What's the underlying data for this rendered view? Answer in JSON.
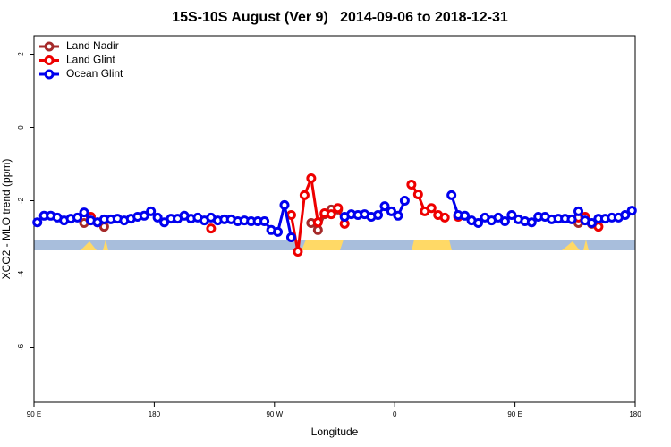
{
  "chart_data": {
    "type": "line",
    "title": "15S-10S August (Ver 9)   2014-09-06 to 2018-12-31",
    "xlabel": "Longitude",
    "ylabel": "XCO2 - MLO trend (ppm)",
    "xlim": [
      90,
      540
    ],
    "xticks": [
      {
        "value": 90,
        "label": "90 E"
      },
      180,
      {
        "value": 270,
        "label": "90 W"
      },
      {
        "value": 360,
        "label": "0"
      },
      {
        "value": 450,
        "label": "90 E"
      },
      {
        "value": 540,
        "label": "180"
      }
    ],
    "ylim": [
      -7.5,
      2.5
    ],
    "yticks": [
      -6,
      -4,
      -2,
      0,
      2
    ],
    "legend": "top-left",
    "series": [
      {
        "name": "Land Nadir",
        "color": "#a52a2a",
        "x": [
          127.5,
          132.5,
          142.5,
          147.5,
          297.5,
          302.5,
          307.5,
          312.5,
          317.5,
          322.5,
          497.5,
          502.5,
          507.5
        ],
        "values": [
          -2.61,
          null,
          -2.71,
          null,
          -2.61,
          -2.8,
          -2.37,
          -2.24,
          -2.24,
          null,
          -2.61,
          null,
          -2.63
        ]
      },
      {
        "name": "Land Glint",
        "color": "#ee0000",
        "x": [
          132.5,
          137.5,
          142.5,
          222.5,
          227.5,
          282.5,
          287.5,
          292.5,
          297.5,
          302.5,
          307.5,
          312.5,
          317.5,
          322.5,
          327.5,
          372.5,
          377.5,
          382.5,
          387.5,
          392.5,
          397.5,
          402.5,
          407.5,
          412.5,
          497.5,
          502.5,
          507.5,
          512.5
        ],
        "values": [
          -2.44,
          -2.59,
          null,
          -2.76,
          null,
          -2.39,
          -3.39,
          -1.85,
          -1.39,
          -2.59,
          -2.34,
          -2.37,
          -2.2,
          -2.63,
          null,
          -1.56,
          -1.83,
          -2.29,
          -2.2,
          -2.39,
          -2.46,
          null,
          -2.44,
          null,
          -2.46,
          -2.44,
          null,
          -2.71
        ]
      },
      {
        "name": "Ocean Glint",
        "color": "#0000ee",
        "x": [
          92.5,
          97.5,
          102.5,
          107.5,
          112.5,
          117.5,
          122.5,
          127.5,
          132.5,
          137.5,
          142.5,
          147.5,
          152.5,
          157.5,
          162.5,
          167.5,
          172.5,
          177.5,
          182.5,
          187.5,
          192.5,
          197.5,
          202.5,
          207.5,
          212.5,
          217.5,
          222.5,
          227.5,
          232.5,
          237.5,
          242.5,
          247.5,
          252.5,
          257.5,
          262.5,
          267.5,
          272.5,
          277.5,
          282.5,
          287.5,
          322.5,
          327.5,
          332.5,
          337.5,
          342.5,
          347.5,
          352.5,
          357.5,
          362.5,
          367.5,
          372.5,
          402.5,
          407.5,
          412.5,
          417.5,
          422.5,
          427.5,
          432.5,
          437.5,
          442.5,
          447.5,
          452.5,
          457.5,
          462.5,
          467.5,
          472.5,
          477.5,
          482.5,
          487.5,
          492.5,
          497.5,
          502.5,
          507.5,
          512.5,
          517.5,
          522.5,
          527.5,
          532.5,
          537.5
        ],
        "values": [
          -2.59,
          -2.41,
          -2.41,
          -2.46,
          -2.54,
          -2.49,
          -2.46,
          -2.32,
          -2.54,
          -2.59,
          -2.51,
          -2.51,
          -2.49,
          -2.54,
          -2.49,
          -2.44,
          -2.41,
          -2.29,
          -2.46,
          -2.59,
          -2.49,
          -2.49,
          -2.41,
          -2.49,
          -2.46,
          -2.54,
          -2.46,
          -2.54,
          -2.51,
          -2.51,
          -2.56,
          -2.54,
          -2.56,
          -2.56,
          -2.56,
          -2.8,
          -2.85,
          -2.12,
          -3.0,
          null,
          -2.44,
          -2.37,
          -2.39,
          -2.37,
          -2.44,
          -2.39,
          -2.15,
          -2.29,
          -2.41,
          -2.0,
          null,
          -1.85,
          -2.39,
          -2.41,
          -2.54,
          -2.61,
          -2.46,
          -2.54,
          -2.46,
          -2.56,
          -2.39,
          -2.51,
          -2.56,
          -2.59,
          -2.44,
          -2.44,
          -2.51,
          -2.49,
          -2.49,
          -2.51,
          -2.29,
          -2.54,
          -2.61,
          -2.49,
          -2.49,
          -2.46,
          -2.46,
          -2.39,
          -2.27
        ]
      }
    ]
  }
}
